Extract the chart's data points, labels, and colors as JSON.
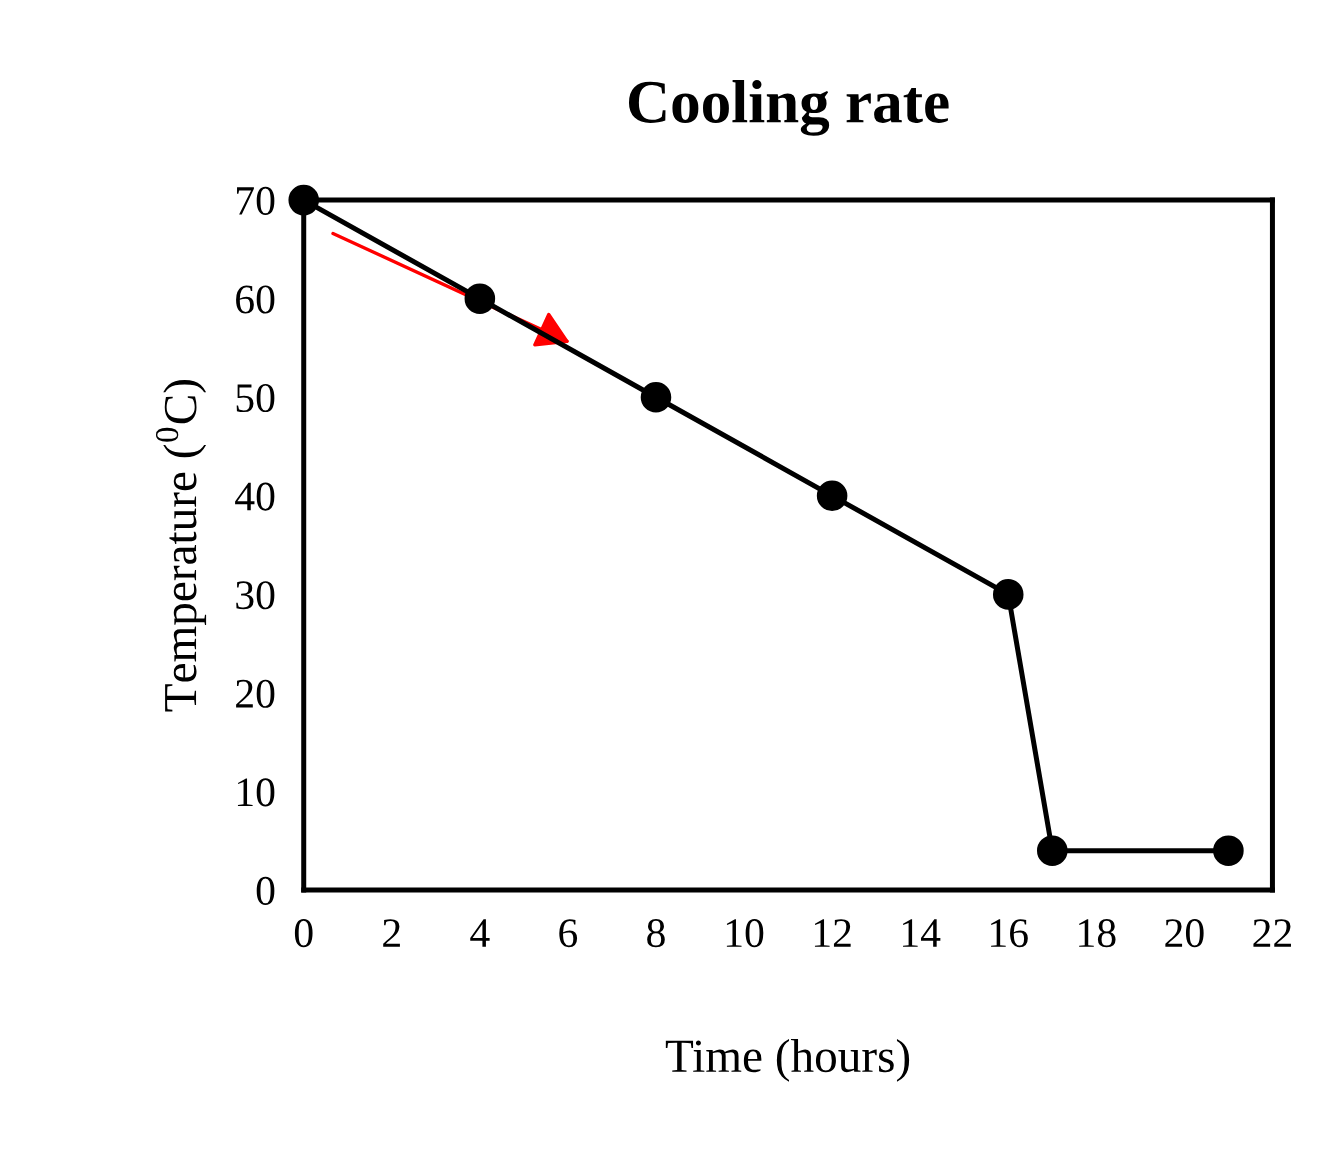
{
  "chart_data": {
    "type": "line",
    "title": "Cooling rate",
    "xlabel": "Time (hours)",
    "ylabel": "Temperature ($^{0}$C)",
    "x": [
      0,
      4,
      8,
      12,
      16,
      17,
      21
    ],
    "series": [
      {
        "color": "#000000",
        "values": [
          70,
          60,
          50,
          40,
          30,
          4,
          4
        ]
      }
    ],
    "xlim": [
      0,
      22
    ],
    "xticks": [
      0,
      2,
      4,
      6,
      8,
      10,
      12,
      14,
      16,
      18,
      20,
      22
    ],
    "ylim": [
      0,
      70
    ],
    "yticks": [
      0,
      10,
      20,
      30,
      40,
      50,
      60,
      70
    ],
    "grid": false,
    "legend": false,
    "marker": "circle",
    "line_style": "solid"
  }
}
